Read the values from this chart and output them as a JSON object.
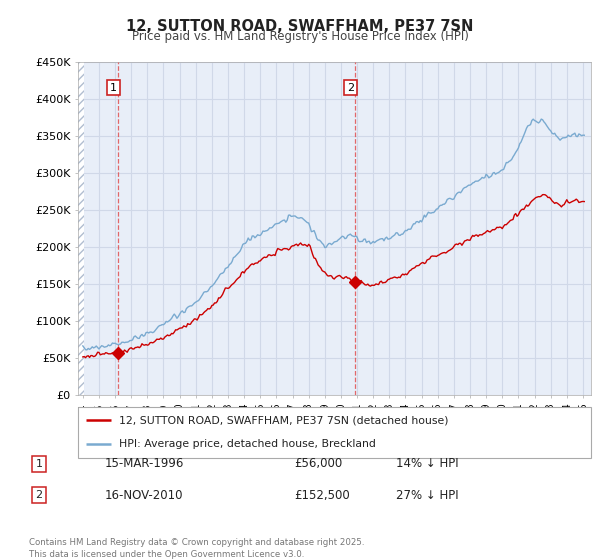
{
  "title": "12, SUTTON ROAD, SWAFFHAM, PE37 7SN",
  "subtitle": "Price paid vs. HM Land Registry's House Price Index (HPI)",
  "bg_color": "#ffffff",
  "plot_bg": "#e8eef8",
  "hatch_color": "#b0bdd0",
  "grid_color": "#d0d8e8",
  "red_line_color": "#cc0000",
  "blue_line_color": "#7aaad0",
  "dashed_line_color": "#e05050",
  "marker1_year": 1996.21,
  "marker1_y": 56000,
  "marker2_year": 2010.88,
  "marker2_y": 152500,
  "legend_label_red": "12, SUTTON ROAD, SWAFFHAM, PE37 7SN (detached house)",
  "legend_label_blue": "HPI: Average price, detached house, Breckland",
  "table_row1": [
    "1",
    "15-MAR-1996",
    "£56,000",
    "14% ↓ HPI"
  ],
  "table_row2": [
    "2",
    "16-NOV-2010",
    "£152,500",
    "27% ↓ HPI"
  ],
  "footnote": "Contains HM Land Registry data © Crown copyright and database right 2025.\nThis data is licensed under the Open Government Licence v3.0.",
  "xmin": 1993.7,
  "xmax": 2025.5,
  "ymin": 0,
  "ymax": 450000,
  "yticks": [
    0,
    50000,
    100000,
    150000,
    200000,
    250000,
    300000,
    350000,
    400000,
    450000
  ],
  "ytick_labels": [
    "£0",
    "£50K",
    "£100K",
    "£150K",
    "£200K",
    "£250K",
    "£300K",
    "£350K",
    "£400K",
    "£450K"
  ]
}
